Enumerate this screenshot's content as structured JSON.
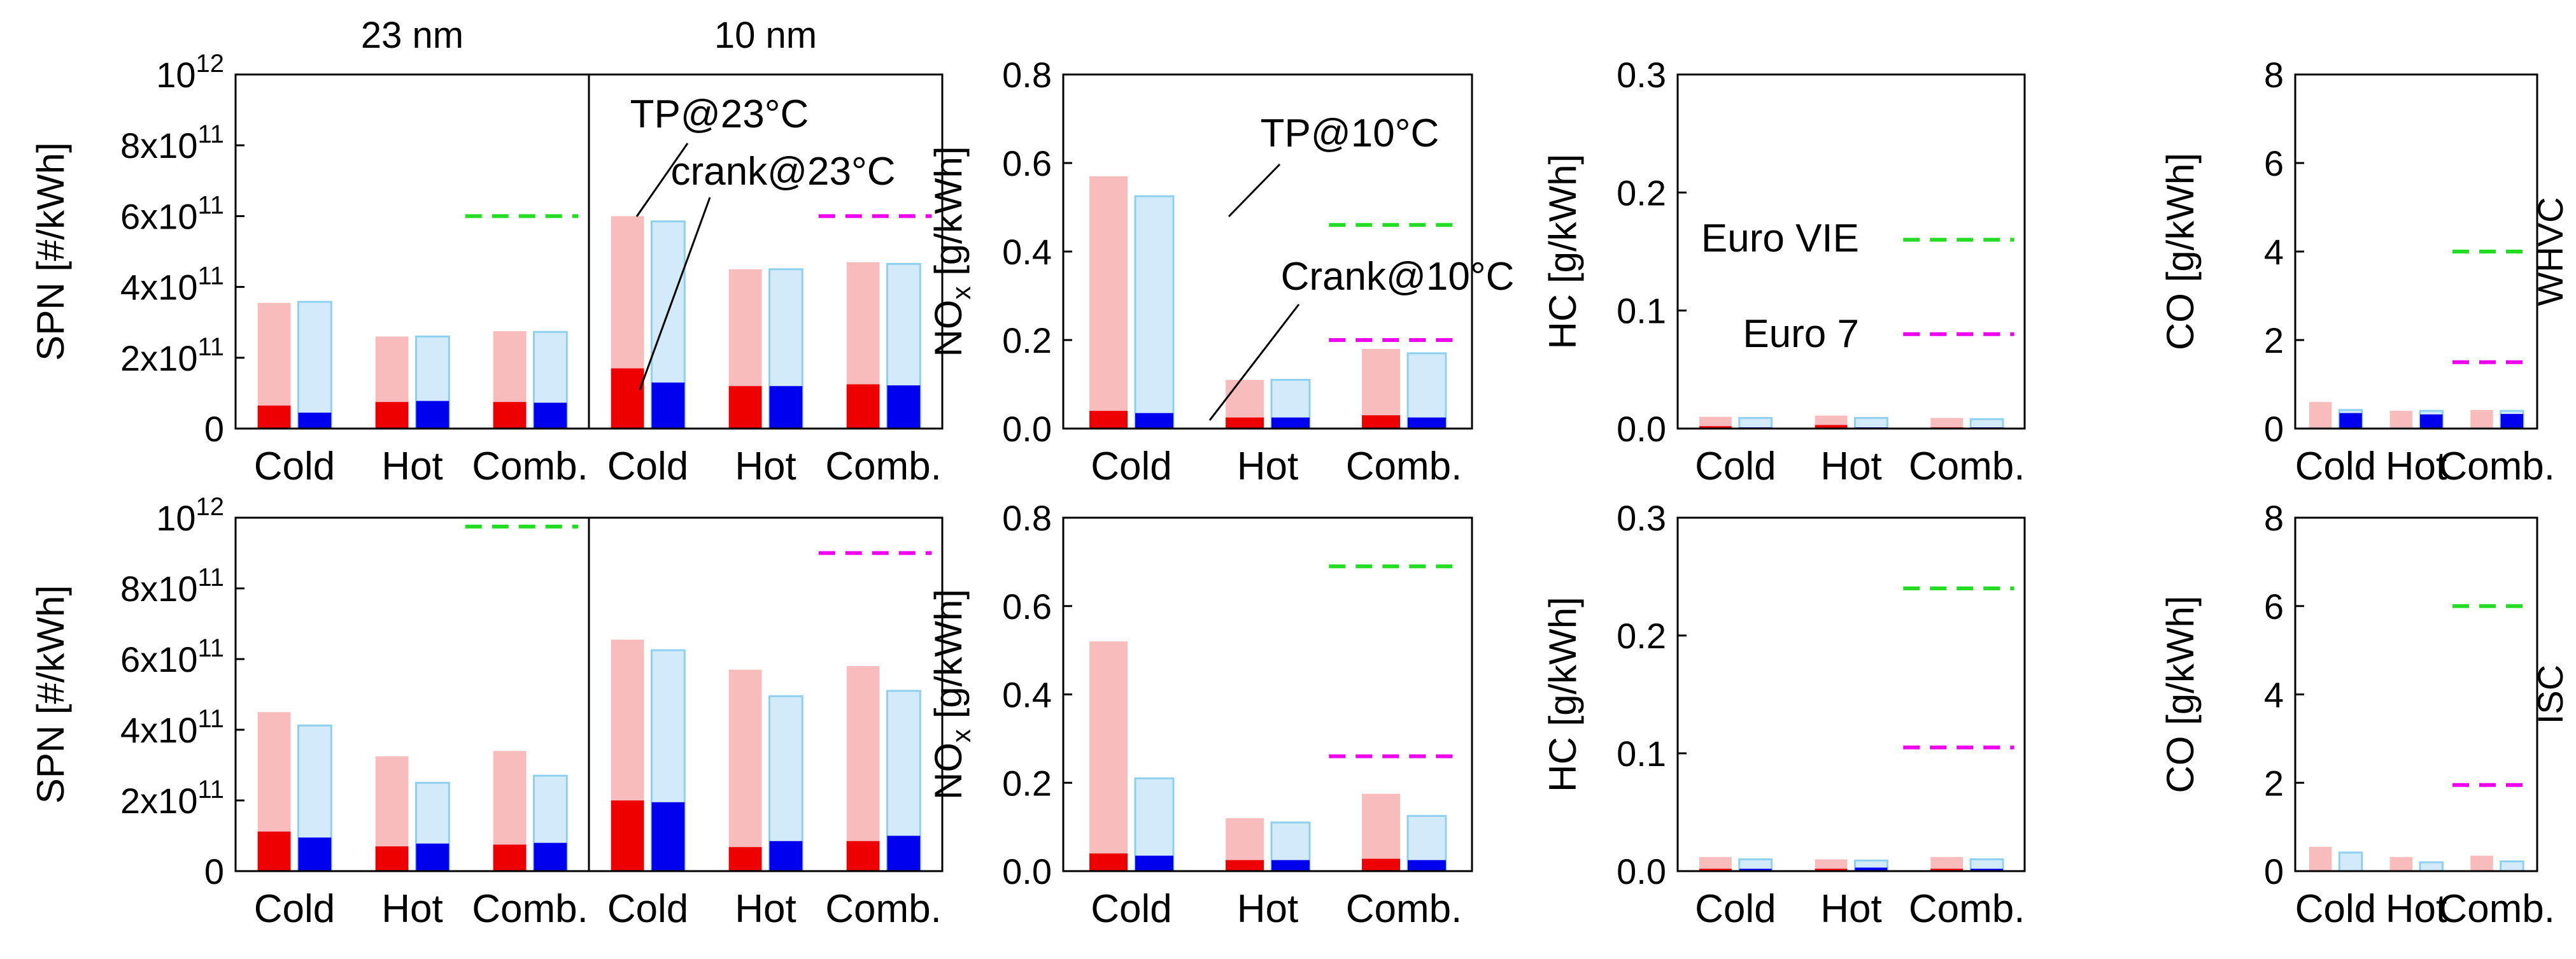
{
  "colors": {
    "tp23_total": "#f9bcbc",
    "tp23_crank": "#ee0000",
    "tp10_total": "#d3eafa",
    "tp10_total_edge": "#8fd0ef",
    "tp10_crank": "#0000ee",
    "euro_vie": "#22dd22",
    "euro_7": "#ee00ee",
    "anno_red": "#ee0000",
    "anno_blue": "#0000dd",
    "anno_green": "#22cc22",
    "anno_magenta": "#dd00dd"
  },
  "chart_data": {
    "type": "bar",
    "categories": [
      "Cold",
      "Hot",
      "Comb."
    ],
    "series_names": [
      "TP@23°C",
      "crank@23°C",
      "TP@10°C",
      "Crank@10°C"
    ],
    "rows": [
      {
        "name": "WHVC",
        "label": "WHVC"
      },
      {
        "name": "ISC",
        "label": "ISC"
      }
    ],
    "spn_titles": [
      "23 nm",
      "10 nm"
    ],
    "spn_yaxis": {
      "label": "SPN [#/kWh]",
      "ylim": [
        0,
        1000000000000.0
      ],
      "ticks": [
        {
          "v": 0,
          "base": "0",
          "exp": ""
        },
        {
          "v": 200000000000.0,
          "base": "2x10",
          "exp": "11"
        },
        {
          "v": 400000000000.0,
          "base": "4x10",
          "exp": "11"
        },
        {
          "v": 600000000000.0,
          "base": "6x10",
          "exp": "11"
        },
        {
          "v": 800000000000.0,
          "base": "8x10",
          "exp": "11"
        },
        {
          "v": 1000000000000.0,
          "base": "10",
          "exp": "12"
        }
      ]
    },
    "spn": [
      {
        "row": "WHVC",
        "panels": [
          {
            "title": "23 nm",
            "tp23": [
              355000000000.0,
              260000000000.0,
              275000000000.0
            ],
            "crank23": [
              65000000000.0,
              75000000000.0,
              75000000000.0
            ],
            "tp10": [
              358000000000.0,
              260000000000.0,
              273000000000.0
            ],
            "crank10": [
              45000000000.0,
              78000000000.0,
              73000000000.0
            ],
            "euro_vie": 600000000000.0,
            "euro_7": null
          },
          {
            "title": "10 nm",
            "tp23": [
              600000000000.0,
              450000000000.0,
              470000000000.0
            ],
            "crank23": [
              170000000000.0,
              120000000000.0,
              125000000000.0
            ],
            "tp10": [
              585000000000.0,
              450000000000.0,
              465000000000.0
            ],
            "crank10": [
              130000000000.0,
              120000000000.0,
              122000000000.0
            ],
            "euro_vie": null,
            "euro_7": 600000000000.0
          }
        ]
      },
      {
        "row": "ISC",
        "panels": [
          {
            "title": "23 nm",
            "tp23": [
              450000000000.0,
              325000000000.0,
              340000000000.0
            ],
            "crank23": [
              112000000000.0,
              70000000000.0,
              75000000000.0
            ],
            "tp10": [
              412000000000.0,
              250000000000.0,
              270000000000.0
            ],
            "crank10": [
              95000000000.0,
              78000000000.0,
              80000000000.0
            ],
            "euro_vie": 975000000000.0,
            "euro_7": null
          },
          {
            "title": "10 nm",
            "tp23": [
              655000000000.0,
              570000000000.0,
              580000000000.0
            ],
            "crank23": [
              200000000000.0,
              68000000000.0,
              85000000000.0
            ],
            "tp10": [
              625000000000.0,
              495000000000.0,
              510000000000.0
            ],
            "crank10": [
              195000000000.0,
              85000000000.0,
              100000000000.0
            ],
            "euro_vie": null,
            "euro_7": 900000000000.0
          }
        ]
      }
    ],
    "nox": {
      "label": "NOx [g/kWh]",
      "label_main": "NO",
      "label_sub": "x",
      "label_unit": " [g/kWh]",
      "ylim": [
        0,
        0.8
      ],
      "ticks": [
        "0.0",
        "0.2",
        "0.4",
        "0.6",
        "0.8"
      ],
      "tick_values": [
        0,
        0.2,
        0.4,
        0.6,
        0.8
      ],
      "rows": [
        {
          "tp23": [
            0.57,
            0.11,
            0.18
          ],
          "crank23": [
            0.04,
            0.025,
            0.03
          ],
          "tp10": [
            0.525,
            0.11,
            0.17
          ],
          "crank10": [
            0.035,
            0.025,
            0.025
          ],
          "euro_vie": 0.46,
          "euro_7": 0.2
        },
        {
          "tp23": [
            0.52,
            0.12,
            0.175
          ],
          "crank23": [
            0.04,
            0.025,
            0.028
          ],
          "tp10": [
            0.21,
            0.11,
            0.125
          ],
          "crank10": [
            0.035,
            0.025,
            0.025
          ],
          "euro_vie": 0.69,
          "euro_7": 0.26
        }
      ]
    },
    "hc": {
      "label": "HC [g/kWh]",
      "ylim": [
        0,
        0.3
      ],
      "ticks": [
        "0.0",
        "0.1",
        "0.2",
        "0.3"
      ],
      "tick_values": [
        0,
        0.1,
        0.2,
        0.3
      ],
      "rows": [
        {
          "tp23": [
            0.01,
            0.011,
            0.009
          ],
          "crank23": [
            0.002,
            0.003,
            0.001
          ],
          "tp10": [
            0.009,
            0.009,
            0.008
          ],
          "crank10": [
            0.001,
            0.001,
            0.001
          ],
          "euro_vie": 0.16,
          "euro_7": 0.08
        },
        {
          "tp23": [
            0.012,
            0.01,
            0.012
          ],
          "crank23": [
            0.002,
            0.002,
            0.002
          ],
          "tp10": [
            0.01,
            0.009,
            0.01
          ],
          "crank10": [
            0.002,
            0.003,
            0.002
          ],
          "euro_vie": 0.24,
          "euro_7": 0.105
        }
      ]
    },
    "co": {
      "label": "CO [g/kWh]",
      "ylim": [
        0,
        8
      ],
      "ticks": [
        "0",
        "2",
        "4",
        "6",
        "8"
      ],
      "tick_values": [
        0,
        2,
        4,
        6,
        8
      ],
      "rows": [
        {
          "tp23": [
            0.6,
            0.4,
            0.42
          ],
          "crank23": [
            0.02,
            0.02,
            0.02
          ],
          "tp10": [
            0.42,
            0.4,
            0.4
          ],
          "crank10": [
            0.35,
            0.32,
            0.33
          ],
          "euro_vie": 4,
          "euro_7": 1.5
        },
        {
          "tp23": [
            0.55,
            0.32,
            0.35
          ],
          "crank23": [
            0.02,
            0.02,
            0.02
          ],
          "tp10": [
            0.42,
            0.2,
            0.22
          ],
          "crank10": [
            0.02,
            0.02,
            0.02
          ],
          "euro_vie": 6,
          "euro_7": 1.95
        }
      ]
    },
    "annotations": {
      "tp23": "TP@23°C",
      "crank23": "crank@23°C",
      "tp10": "TP@10°C",
      "crank10": "Crank@10°C",
      "euro_vie": "Euro VIE",
      "euro_7": "Euro 7"
    }
  }
}
